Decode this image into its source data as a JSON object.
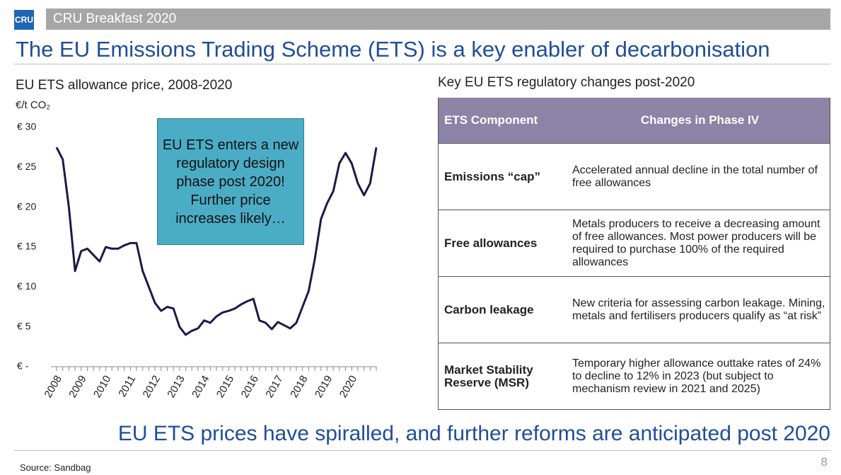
{
  "header": {
    "logo": "CRU",
    "title": "CRU Breakfast 2020"
  },
  "slide_title": "The EU Emissions Trading Scheme (ETS) is a key enabler of decarbonisation",
  "chart_data": {
    "type": "line",
    "title": "EU ETS allowance price, 2008-2020",
    "y_label": "€/t CO₂",
    "categories": [
      "2008",
      null,
      null,
      null,
      "2009",
      null,
      null,
      null,
      "2010",
      null,
      null,
      null,
      "2011",
      null,
      null,
      null,
      "2012",
      null,
      null,
      null,
      "2013",
      null,
      null,
      null,
      "2014",
      null,
      null,
      null,
      "2015",
      null,
      null,
      null,
      "2016",
      null,
      null,
      null,
      "2017",
      null,
      null,
      null,
      "2018",
      null,
      null,
      null,
      "2019",
      null,
      null,
      null,
      "2020",
      null,
      null,
      null,
      null
    ],
    "values": [
      27.5,
      26,
      20,
      12,
      14.5,
      14.8,
      14,
      13.2,
      15,
      14.8,
      14.8,
      15.2,
      15.5,
      15.5,
      12,
      10,
      8,
      7,
      7.5,
      7.3,
      5,
      4,
      4.5,
      4.8,
      5.8,
      5.5,
      6.3,
      6.8,
      7,
      7.3,
      7.8,
      8.2,
      8.5,
      5.8,
      5.5,
      4.7,
      5.6,
      5.2,
      4.8,
      5.5,
      7.5,
      9.5,
      13.5,
      18.5,
      20.5,
      22,
      25.5,
      26.8,
      25.5,
      23,
      21.5,
      23,
      27.5
    ],
    "color": "#1b1a4a",
    "ylim": [
      0,
      30
    ],
    "yticks": [
      {
        "value": 0,
        "label": "€ -"
      },
      {
        "value": 5,
        "label": "€ 5"
      },
      {
        "value": 10,
        "label": "€ 10"
      },
      {
        "value": 15,
        "label": "€ 15"
      },
      {
        "value": 20,
        "label": "€ 20"
      },
      {
        "value": 25,
        "label": "€ 25"
      },
      {
        "value": 30,
        "label": "€ 30"
      }
    ],
    "annotation": "EU ETS enters a new regulatory design phase post 2020! Further price increases likely…"
  },
  "table": {
    "title": "Key EU ETS regulatory changes post-2020",
    "header": [
      "ETS Component",
      "Changes in Phase IV"
    ],
    "rows": [
      [
        "Emissions “cap”",
        "Accelerated annual decline in the total number of free allowances"
      ],
      [
        "Free allowances",
        "Metals producers to receive a decreasing amount of free allowances. Most power producers will be required to purchase 100% of the required allowances"
      ],
      [
        "Carbon leakage",
        "New criteria for assessing carbon leakage. Mining, metals and fertilisers producers qualify as “at risk”"
      ],
      [
        "Market Stability Reserve (MSR)",
        "Temporary higher allowance outtake rates of 24% to decline to 12% in 2023 (but subject to mechanism review in 2021 and 2025)"
      ]
    ]
  },
  "conclusion": "EU ETS prices have spiralled, and further reforms are anticipated post 2020",
  "source": "Source: Sandbag",
  "page_number": "8"
}
